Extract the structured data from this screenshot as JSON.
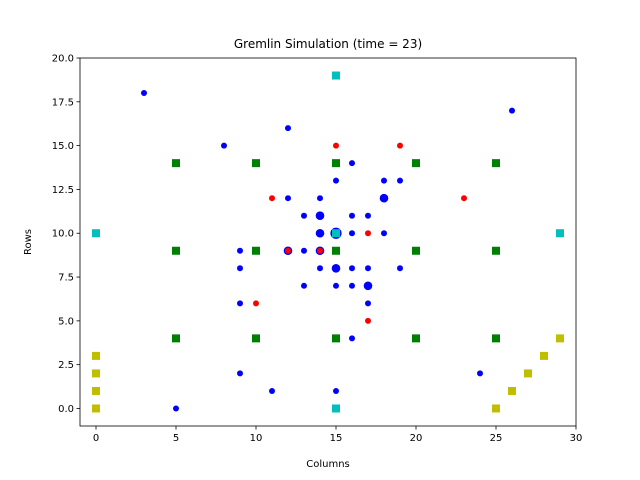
{
  "chart_data": {
    "type": "scatter",
    "title": "Gremlin Simulation (time = 23)",
    "xlabel": "Columns",
    "ylabel": "Rows",
    "xlim": [
      -1,
      30
    ],
    "ylim": [
      -1,
      20
    ],
    "xticks": [
      0,
      5,
      10,
      15,
      20,
      25,
      30
    ],
    "yticks": [
      0.0,
      2.5,
      5.0,
      7.5,
      10.0,
      12.5,
      15.0,
      17.5,
      20.0
    ],
    "xtick_labels": [
      "0",
      "5",
      "10",
      "15",
      "20",
      "25",
      "30"
    ],
    "ytick_labels": [
      "0.0",
      "2.5",
      "5.0",
      "7.5",
      "10.0",
      "12.5",
      "15.0",
      "17.5",
      "20.0"
    ],
    "grid": false,
    "series": [
      {
        "marker": "circle",
        "color": "#0000ff",
        "points": [
          {
            "x": 3,
            "y": 18,
            "s": 1
          },
          {
            "x": 26,
            "y": 17,
            "s": 1
          },
          {
            "x": 12,
            "y": 16,
            "s": 1
          },
          {
            "x": 8,
            "y": 15,
            "s": 1
          },
          {
            "x": 16,
            "y": 14,
            "s": 1
          },
          {
            "x": 15,
            "y": 13,
            "s": 1
          },
          {
            "x": 18,
            "y": 13,
            "s": 1
          },
          {
            "x": 19,
            "y": 13,
            "s": 1
          },
          {
            "x": 12,
            "y": 12,
            "s": 1
          },
          {
            "x": 14,
            "y": 12,
            "s": 1
          },
          {
            "x": 18,
            "y": 12,
            "s": 2
          },
          {
            "x": 13,
            "y": 11,
            "s": 1
          },
          {
            "x": 14,
            "y": 11,
            "s": 2
          },
          {
            "x": 16,
            "y": 11,
            "s": 1
          },
          {
            "x": 17,
            "y": 11,
            "s": 1
          },
          {
            "x": 14,
            "y": 10,
            "s": 2
          },
          {
            "x": 15,
            "y": 10,
            "s": 3
          },
          {
            "x": 16,
            "y": 10,
            "s": 1
          },
          {
            "x": 18,
            "y": 10,
            "s": 1
          },
          {
            "x": 9,
            "y": 9,
            "s": 1
          },
          {
            "x": 12,
            "y": 9,
            "s": 2
          },
          {
            "x": 13,
            "y": 9,
            "s": 1
          },
          {
            "x": 14,
            "y": 9,
            "s": 2
          },
          {
            "x": 9,
            "y": 8,
            "s": 1
          },
          {
            "x": 14,
            "y": 8,
            "s": 1
          },
          {
            "x": 15,
            "y": 8,
            "s": 2
          },
          {
            "x": 16,
            "y": 8,
            "s": 1
          },
          {
            "x": 17,
            "y": 8,
            "s": 1
          },
          {
            "x": 19,
            "y": 8,
            "s": 1
          },
          {
            "x": 13,
            "y": 7,
            "s": 1
          },
          {
            "x": 15,
            "y": 7,
            "s": 1
          },
          {
            "x": 16,
            "y": 7,
            "s": 1
          },
          {
            "x": 17,
            "y": 7,
            "s": 2
          },
          {
            "x": 9,
            "y": 6,
            "s": 1
          },
          {
            "x": 17,
            "y": 6,
            "s": 1
          },
          {
            "x": 16,
            "y": 4,
            "s": 1
          },
          {
            "x": 9,
            "y": 2,
            "s": 1
          },
          {
            "x": 24,
            "y": 2,
            "s": 1
          },
          {
            "x": 11,
            "y": 1,
            "s": 1
          },
          {
            "x": 15,
            "y": 1,
            "s": 1
          },
          {
            "x": 5,
            "y": 0,
            "s": 1
          }
        ]
      },
      {
        "marker": "circle",
        "color": "#ff0000",
        "points": [
          {
            "x": 15,
            "y": 15,
            "s": 1
          },
          {
            "x": 19,
            "y": 15,
            "s": 1
          },
          {
            "x": 11,
            "y": 12,
            "s": 1
          },
          {
            "x": 23,
            "y": 12,
            "s": 1
          },
          {
            "x": 17,
            "y": 10,
            "s": 1
          },
          {
            "x": 12,
            "y": 9,
            "s": 1
          },
          {
            "x": 14,
            "y": 9,
            "s": 1
          },
          {
            "x": 10,
            "y": 6,
            "s": 1
          },
          {
            "x": 17,
            "y": 5,
            "s": 1
          }
        ]
      },
      {
        "marker": "square",
        "color": "#008000",
        "points": [
          {
            "x": 5,
            "y": 14
          },
          {
            "x": 10,
            "y": 14
          },
          {
            "x": 15,
            "y": 14
          },
          {
            "x": 20,
            "y": 14
          },
          {
            "x": 25,
            "y": 14
          },
          {
            "x": 5,
            "y": 9
          },
          {
            "x": 10,
            "y": 9
          },
          {
            "x": 15,
            "y": 9
          },
          {
            "x": 20,
            "y": 9
          },
          {
            "x": 25,
            "y": 9
          },
          {
            "x": 5,
            "y": 4
          },
          {
            "x": 10,
            "y": 4
          },
          {
            "x": 15,
            "y": 4
          },
          {
            "x": 20,
            "y": 4
          },
          {
            "x": 25,
            "y": 4
          }
        ]
      },
      {
        "marker": "square",
        "color": "#00bfbf",
        "points": [
          {
            "x": 15,
            "y": 19
          },
          {
            "x": 0,
            "y": 10
          },
          {
            "x": 15,
            "y": 10
          },
          {
            "x": 29,
            "y": 10
          },
          {
            "x": 15,
            "y": 0
          }
        ]
      },
      {
        "marker": "square",
        "color": "#bfbf00",
        "points": [
          {
            "x": 0,
            "y": 3
          },
          {
            "x": 0,
            "y": 2
          },
          {
            "x": 0,
            "y": 1
          },
          {
            "x": 0,
            "y": 0
          },
          {
            "x": 29,
            "y": 4
          },
          {
            "x": 28,
            "y": 3
          },
          {
            "x": 27,
            "y": 2
          },
          {
            "x": 26,
            "y": 1
          },
          {
            "x": 25,
            "y": 0
          }
        ]
      }
    ]
  }
}
